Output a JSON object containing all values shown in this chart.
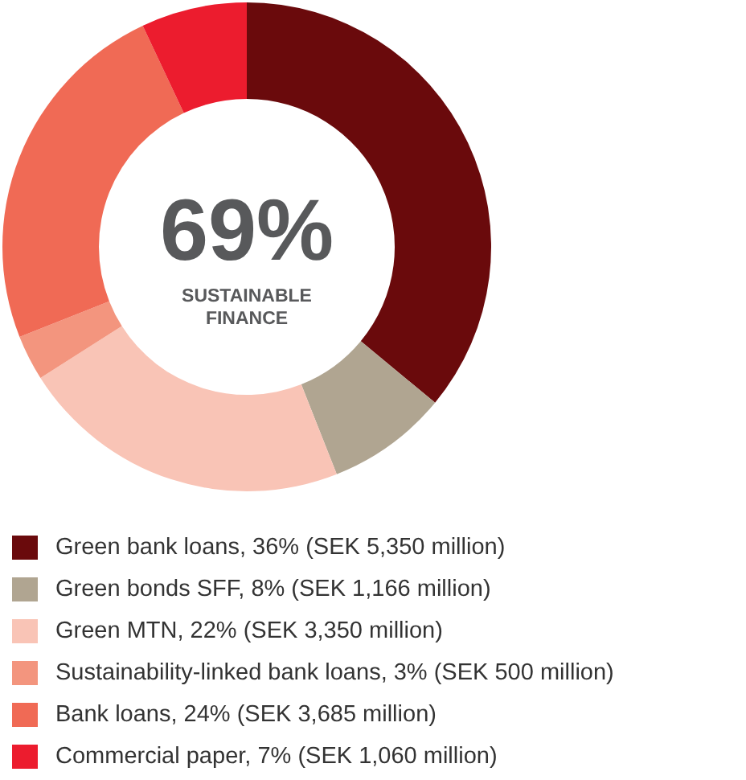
{
  "chart_data": {
    "type": "donut",
    "categories": [
      "Green bank loans, 36% (SEK 5,350 million)",
      "Green bonds SFF, 8% (SEK 1,166 million)",
      "Green MTN, 22% (SEK 3,350 million)",
      "Sustainability-linked bank loans, 3% (SEK 500 million)",
      "Bank loans, 24% (SEK 3,685 million)",
      "Commercial paper, 7% (SEK 1,060 million)"
    ],
    "values": [
      36,
      8,
      22,
      3,
      24,
      7
    ],
    "colors": [
      "#6a0a0c",
      "#b0a591",
      "#f9c4b6",
      "#f3957e",
      "#f06a55",
      "#ec1c2e"
    ],
    "annotations": [
      "69%",
      "SUSTAINABLE FINANCE"
    ],
    "legend": "bottom"
  }
}
